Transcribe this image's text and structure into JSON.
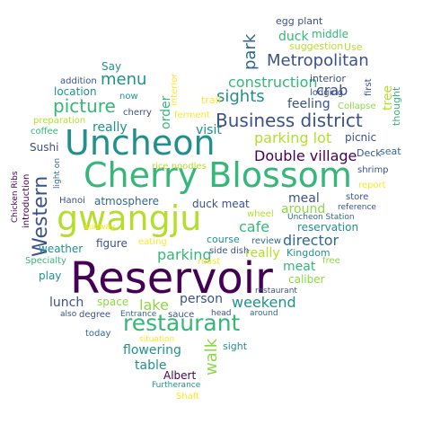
{
  "colors": {
    "purple": "#440154",
    "indigo": "#3b518b",
    "blue": "#31688e",
    "teal": "#21908d",
    "green": "#35b779",
    "lime": "#8fd744",
    "yellow": "#b5de2b",
    "gold": "#fde725"
  },
  "words": [
    {
      "text": "Reservoir",
      "color": "purple"
    },
    {
      "text": "gwangju",
      "color": "yellow"
    },
    {
      "text": "Cherry Blossom",
      "color": "green"
    },
    {
      "text": "Uncheon",
      "color": "teal"
    },
    {
      "text": "restaurant",
      "color": "green"
    },
    {
      "text": "Business district",
      "color": "indigo"
    },
    {
      "text": "Metropolitan",
      "color": "indigo"
    },
    {
      "text": "construction",
      "color": "green"
    },
    {
      "text": "Western",
      "color": "indigo"
    },
    {
      "text": "picture",
      "color": "green"
    },
    {
      "text": "sights",
      "color": "teal"
    },
    {
      "text": "parking lot",
      "color": "yellow"
    },
    {
      "text": "Double village",
      "color": "purple"
    },
    {
      "text": "menu",
      "color": "teal"
    },
    {
      "text": "parking",
      "color": "green"
    },
    {
      "text": "cafe",
      "color": "green"
    },
    {
      "text": "walk",
      "color": "lime"
    },
    {
      "text": "director",
      "color": "blue"
    },
    {
      "text": "park",
      "color": "blue"
    },
    {
      "text": "crab",
      "color": "indigo"
    },
    {
      "text": "weekend",
      "color": "teal"
    },
    {
      "text": "lake",
      "color": "lime"
    },
    {
      "text": "visit",
      "color": "teal"
    },
    {
      "text": "lunch",
      "color": "indigo"
    },
    {
      "text": "person",
      "color": "indigo"
    },
    {
      "text": "really",
      "color": "teal"
    },
    {
      "text": "really",
      "color": "yellow"
    },
    {
      "text": "meat",
      "color": "green"
    },
    {
      "text": "meal",
      "color": "indigo"
    },
    {
      "text": "around",
      "color": "lime"
    },
    {
      "text": "reservation",
      "color": "teal"
    },
    {
      "text": "flowering",
      "color": "teal"
    },
    {
      "text": "feeling",
      "color": "indigo"
    },
    {
      "text": "location",
      "color": "teal"
    },
    {
      "text": "table",
      "color": "teal"
    },
    {
      "text": "order",
      "color": "green"
    },
    {
      "text": "Say",
      "color": "teal"
    },
    {
      "text": "duck",
      "color": "green"
    },
    {
      "text": "figure",
      "color": "indigo"
    },
    {
      "text": "atmosphere",
      "color": "blue"
    },
    {
      "text": "play",
      "color": "teal"
    },
    {
      "text": "space",
      "color": "lime"
    },
    {
      "text": "caliber",
      "color": "lime"
    },
    {
      "text": "Albert",
      "color": "purple"
    },
    {
      "text": "picnic",
      "color": "indigo"
    },
    {
      "text": "tree",
      "color": "yellow"
    },
    {
      "text": "Sushi",
      "color": "indigo"
    },
    {
      "text": "weather",
      "color": "teal"
    },
    {
      "text": "duck meat",
      "color": "indigo"
    },
    {
      "text": "Kingdom",
      "color": "teal"
    },
    {
      "text": "course",
      "color": "teal"
    },
    {
      "text": "sight",
      "color": "teal"
    },
    {
      "text": "middle",
      "color": "green"
    },
    {
      "text": "egg plant",
      "color": "indigo"
    },
    {
      "text": "suggestion",
      "color": "yellow"
    },
    {
      "text": "Use",
      "color": "yellow"
    },
    {
      "text": "interior",
      "color": "indigo"
    },
    {
      "text": "addition",
      "color": "indigo"
    },
    {
      "text": "now",
      "color": "teal"
    },
    {
      "text": "interior",
      "color": "gold"
    },
    {
      "text": "cherry",
      "color": "indigo"
    },
    {
      "text": "ferment",
      "color": "gold"
    },
    {
      "text": "trail",
      "color": "gold"
    },
    {
      "text": "lodging",
      "color": "indigo"
    },
    {
      "text": "first",
      "color": "indigo"
    },
    {
      "text": "Collapse",
      "color": "lime"
    },
    {
      "text": "thought",
      "color": "green"
    },
    {
      "text": "preparation",
      "color": "yellow"
    },
    {
      "text": "coffee",
      "color": "green"
    },
    {
      "text": "rice noodles",
      "color": "yellow"
    },
    {
      "text": "Deck",
      "color": "indigo"
    },
    {
      "text": "seat",
      "color": "blue"
    },
    {
      "text": "light on",
      "color": "blue"
    },
    {
      "text": "shrimp",
      "color": "indigo"
    },
    {
      "text": "Chicken Ribs",
      "color": "purple"
    },
    {
      "text": "introduction",
      "color": "purple"
    },
    {
      "text": "report",
      "color": "gold"
    },
    {
      "text": "store",
      "color": "indigo"
    },
    {
      "text": "reference",
      "color": "indigo"
    },
    {
      "text": "Uncheon Station",
      "color": "blue"
    },
    {
      "text": "wheel",
      "color": "yellow"
    },
    {
      "text": "Hanoi",
      "color": "indigo"
    },
    {
      "text": "eating",
      "color": "gold"
    },
    {
      "text": "review",
      "color": "blue"
    },
    {
      "text": "Specialty",
      "color": "green"
    },
    {
      "text": "side dish",
      "color": "indigo"
    },
    {
      "text": "roast",
      "color": "gold"
    },
    {
      "text": "free",
      "color": "lime"
    },
    {
      "text": "restaurant",
      "color": "indigo"
    },
    {
      "text": "sauce",
      "color": "indigo"
    },
    {
      "text": "also",
      "color": "indigo"
    },
    {
      "text": "degree",
      "color": "indigo"
    },
    {
      "text": "Entrance",
      "color": "blue"
    },
    {
      "text": "head",
      "color": "indigo"
    },
    {
      "text": "around",
      "color": "blue"
    },
    {
      "text": "today",
      "color": "blue"
    },
    {
      "text": "situation",
      "color": "gold"
    },
    {
      "text": "Furtherance",
      "color": "teal"
    },
    {
      "text": "Shaft",
      "color": "gold"
    },
    {
      "text": "subway",
      "color": "gold"
    }
  ]
}
